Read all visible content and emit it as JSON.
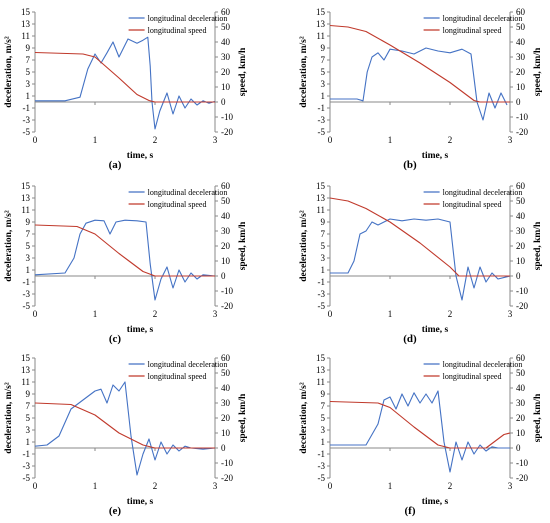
{
  "figure": {
    "background": "#ffffff"
  },
  "chart_data": [
    {
      "type": "line",
      "panel_label": "(a)",
      "xlabel": "time, s",
      "ylabel_left": "deceleration, m/s²",
      "ylabel_right": "speed, km/h",
      "xlim": [
        0,
        3
      ],
      "ylim_left": [
        -5,
        15
      ],
      "ylim_right": [
        -20,
        60
      ],
      "x_ticks": [
        "0",
        "1",
        "2",
        "3"
      ],
      "y_ticks_left": [
        "-5",
        "-3",
        "-1",
        "1",
        "3",
        "5",
        "7",
        "9",
        "11",
        "13",
        "15"
      ],
      "y_ticks_right": [
        "-20",
        "-10",
        "0",
        "10",
        "20",
        "30",
        "40",
        "50",
        "60"
      ],
      "legend": [
        "longitudinal deceleration",
        "longitudinal speed"
      ],
      "series": [
        {
          "name": "longitudinal deceleration",
          "axis": "left",
          "color": "#4472c4",
          "x": [
            0,
            0.5,
            0.75,
            0.88,
            1.0,
            1.1,
            1.2,
            1.3,
            1.4,
            1.55,
            1.7,
            1.8,
            1.88,
            1.92,
            1.95,
            2.0,
            2.08,
            2.2,
            2.3,
            2.4,
            2.5,
            2.6,
            2.7,
            2.8,
            2.9,
            3.0
          ],
          "y": [
            0.2,
            0.2,
            0.8,
            5.5,
            8.0,
            6.5,
            8.2,
            10.0,
            7.5,
            10.5,
            9.8,
            10.3,
            10.8,
            6.0,
            0,
            -4.5,
            -1.5,
            1.5,
            -2.0,
            1.0,
            -1.0,
            0.5,
            -0.5,
            0.2,
            -0.2,
            0.1
          ]
        },
        {
          "name": "longitudinal speed",
          "axis": "right",
          "color": "#c0392b",
          "x": [
            0,
            0.8,
            1.0,
            1.4,
            1.7,
            1.9,
            2.0,
            3.0
          ],
          "y": [
            33,
            32,
            30,
            16,
            5,
            1,
            0,
            0
          ]
        }
      ]
    },
    {
      "type": "line",
      "panel_label": "(b)",
      "xlabel": "time, s",
      "ylabel_left": "deceleration, m/s²",
      "ylabel_right": "speed, km/h",
      "xlim": [
        0,
        3
      ],
      "ylim_left": [
        -5,
        15
      ],
      "ylim_right": [
        -20,
        60
      ],
      "x_ticks": [
        "0",
        "1",
        "2",
        "3"
      ],
      "y_ticks_left": [
        "-5",
        "-3",
        "-1",
        "1",
        "3",
        "5",
        "7",
        "9",
        "11",
        "13",
        "15"
      ],
      "y_ticks_right": [
        "-20",
        "-10",
        "0",
        "10",
        "20",
        "30",
        "40",
        "50",
        "60"
      ],
      "legend": [
        "longitudinal deceleration",
        "longitudinal speed"
      ],
      "series": [
        {
          "name": "longitudinal deceleration",
          "axis": "left",
          "color": "#4472c4",
          "x": [
            0,
            0.45,
            0.55,
            0.62,
            0.7,
            0.8,
            0.9,
            1.0,
            1.2,
            1.4,
            1.6,
            1.8,
            2.0,
            2.2,
            2.35,
            2.45,
            2.55,
            2.65,
            2.75,
            2.85,
            2.95
          ],
          "y": [
            0.5,
            0.5,
            0.2,
            5.0,
            7.5,
            8.2,
            7.0,
            8.8,
            8.5,
            8.0,
            9.0,
            8.5,
            8.2,
            8.8,
            8.0,
            0,
            -3.0,
            1.5,
            -1.0,
            1.5,
            -0.5
          ]
        },
        {
          "name": "longitudinal speed",
          "axis": "right",
          "color": "#c0392b",
          "x": [
            0,
            0.3,
            0.6,
            1.0,
            1.5,
            2.0,
            2.4,
            2.5,
            3.0
          ],
          "y": [
            51,
            50,
            47,
            38,
            26,
            13,
            1,
            0,
            0
          ]
        }
      ]
    },
    {
      "type": "line",
      "panel_label": "(c)",
      "xlabel": "time, s",
      "ylabel_left": "deceleration, m/s²",
      "ylabel_right": "speed, km/h",
      "xlim": [
        0,
        3
      ],
      "ylim_left": [
        -5,
        15
      ],
      "ylim_right": [
        -20,
        60
      ],
      "x_ticks": [
        "0",
        "1",
        "2",
        "3"
      ],
      "y_ticks_left": [
        "-5",
        "-3",
        "-1",
        "1",
        "3",
        "5",
        "7",
        "9",
        "11",
        "13",
        "15"
      ],
      "y_ticks_right": [
        "-20",
        "-10",
        "0",
        "10",
        "20",
        "30",
        "40",
        "50",
        "60"
      ],
      "legend": [
        "longitudinal deceleration",
        "longitudinal speed"
      ],
      "series": [
        {
          "name": "longitudinal deceleration",
          "axis": "left",
          "color": "#4472c4",
          "x": [
            0,
            0.5,
            0.65,
            0.75,
            0.85,
            1.0,
            1.15,
            1.25,
            1.35,
            1.5,
            1.7,
            1.85,
            1.92,
            2.0,
            2.1,
            2.2,
            2.3,
            2.4,
            2.5,
            2.6,
            2.7,
            2.8,
            3.0
          ],
          "y": [
            0.2,
            0.5,
            3.0,
            7.0,
            8.8,
            9.3,
            9.2,
            7.0,
            9.0,
            9.3,
            9.2,
            9.0,
            2.0,
            -4.0,
            -0.5,
            1.5,
            -2.0,
            1.0,
            -1.0,
            0.5,
            -0.5,
            0.2,
            0
          ]
        },
        {
          "name": "longitudinal speed",
          "axis": "right",
          "color": "#c0392b",
          "x": [
            0,
            0.7,
            1.0,
            1.4,
            1.8,
            2.0,
            3.0
          ],
          "y": [
            34,
            33,
            28,
            15,
            3,
            0,
            0
          ]
        }
      ]
    },
    {
      "type": "line",
      "panel_label": "(d)",
      "xlabel": "time, s",
      "ylabel_left": "deceleration, m/s²",
      "ylabel_right": "speed, km/h",
      "xlim": [
        0,
        3
      ],
      "ylim_left": [
        -5,
        15
      ],
      "ylim_right": [
        -20,
        60
      ],
      "x_ticks": [
        "0",
        "1",
        "2",
        "3"
      ],
      "y_ticks_left": [
        "-5",
        "-3",
        "-1",
        "1",
        "3",
        "5",
        "7",
        "9",
        "11",
        "13",
        "15"
      ],
      "y_ticks_right": [
        "-20",
        "-10",
        "0",
        "10",
        "20",
        "30",
        "40",
        "50",
        "60"
      ],
      "legend": [
        "longitudinal deceleration",
        "longitudinal speed"
      ],
      "series": [
        {
          "name": "longitudinal deceleration",
          "axis": "left",
          "color": "#4472c4",
          "x": [
            0,
            0.3,
            0.4,
            0.5,
            0.6,
            0.7,
            0.8,
            1.0,
            1.2,
            1.4,
            1.6,
            1.8,
            2.0,
            2.1,
            2.2,
            2.3,
            2.4,
            2.5,
            2.6,
            2.7,
            2.8,
            3.0
          ],
          "y": [
            0.5,
            0.5,
            2.5,
            7.0,
            7.5,
            9.0,
            8.5,
            9.5,
            9.2,
            9.5,
            9.3,
            9.5,
            9.0,
            0,
            -4.0,
            1.5,
            -2.0,
            1.5,
            -1.0,
            0.5,
            -0.5,
            0
          ]
        },
        {
          "name": "longitudinal speed",
          "axis": "right",
          "color": "#c0392b",
          "x": [
            0,
            0.3,
            0.6,
            1.0,
            1.5,
            2.0,
            2.15,
            3.0
          ],
          "y": [
            52,
            50,
            45,
            36,
            22,
            6,
            0,
            0
          ]
        }
      ]
    },
    {
      "type": "line",
      "panel_label": "(e)",
      "xlabel": "time, s",
      "ylabel_left": "deceleration, m/s²",
      "ylabel_right": "speed, km/h",
      "xlim": [
        0,
        3
      ],
      "ylim_left": [
        -5,
        15
      ],
      "ylim_right": [
        -20,
        60
      ],
      "x_ticks": [
        "0",
        "1",
        "2",
        "3"
      ],
      "y_ticks_left": [
        "-5",
        "-3",
        "-1",
        "1",
        "3",
        "5",
        "7",
        "9",
        "11",
        "13",
        "15"
      ],
      "y_ticks_right": [
        "-20",
        "-10",
        "0",
        "10",
        "20",
        "30",
        "40",
        "50",
        "60"
      ],
      "legend": [
        "longitudinal deceleration",
        "longitudinal speed"
      ],
      "series": [
        {
          "name": "longitudinal deceleration",
          "axis": "left",
          "color": "#4472c4",
          "x": [
            0,
            0.2,
            0.4,
            0.6,
            0.8,
            1.0,
            1.1,
            1.2,
            1.3,
            1.4,
            1.5,
            1.6,
            1.7,
            1.8,
            1.9,
            2.0,
            2.1,
            2.2,
            2.3,
            2.4,
            2.5,
            2.6,
            2.8,
            3.0
          ],
          "y": [
            0.3,
            0.5,
            2.0,
            6.5,
            8.0,
            9.5,
            9.8,
            7.5,
            10.5,
            9.5,
            11.0,
            2.0,
            -4.5,
            -1.0,
            1.5,
            -2.0,
            1.0,
            -1.0,
            0.5,
            -0.5,
            0.3,
            0,
            -0.2,
            0
          ]
        },
        {
          "name": "longitudinal speed",
          "axis": "right",
          "color": "#c0392b",
          "x": [
            0,
            0.6,
            1.0,
            1.4,
            1.8,
            2.0,
            3.0
          ],
          "y": [
            30,
            29,
            22,
            10,
            2,
            0,
            0
          ]
        }
      ]
    },
    {
      "type": "line",
      "panel_label": "(f)",
      "xlabel": "time, s",
      "ylabel_left": "deceleration, m/s²",
      "ylabel_right": "speed, km/h",
      "xlim": [
        0,
        3
      ],
      "ylim_left": [
        -5,
        15
      ],
      "ylim_right": [
        -20,
        60
      ],
      "x_ticks": [
        "0",
        "1",
        "2",
        "3"
      ],
      "y_ticks_left": [
        "-5",
        "-3",
        "-1",
        "1",
        "3",
        "5",
        "7",
        "9",
        "11",
        "13",
        "15"
      ],
      "y_ticks_right": [
        "-20",
        "-10",
        "0",
        "10",
        "20",
        "30",
        "40",
        "50",
        "60"
      ],
      "legend": [
        "longitudinal deceleration",
        "longitudinal speed"
      ],
      "series": [
        {
          "name": "longitudinal deceleration",
          "axis": "left",
          "color": "#4472c4",
          "x": [
            0,
            0.6,
            0.8,
            0.9,
            1.0,
            1.1,
            1.2,
            1.3,
            1.4,
            1.5,
            1.6,
            1.7,
            1.8,
            1.9,
            2.0,
            2.1,
            2.2,
            2.3,
            2.4,
            2.5,
            2.6,
            2.7,
            2.8,
            3.0
          ],
          "y": [
            0.5,
            0.5,
            4.0,
            8.0,
            8.5,
            6.5,
            9.0,
            7.0,
            9.2,
            7.5,
            9.0,
            7.5,
            9.5,
            1.0,
            -4.0,
            1.0,
            -2.0,
            1.0,
            -1.0,
            0.5,
            -0.5,
            0.2,
            0,
            0
          ]
        },
        {
          "name": "longitudinal speed",
          "axis": "right",
          "color": "#c0392b",
          "x": [
            0,
            0.8,
            1.0,
            1.4,
            1.8,
            2.0,
            2.6,
            2.7,
            2.8,
            2.9,
            3.0
          ],
          "y": [
            31,
            30,
            27,
            14,
            2,
            0,
            0,
            3,
            6,
            9,
            10
          ]
        }
      ]
    }
  ]
}
